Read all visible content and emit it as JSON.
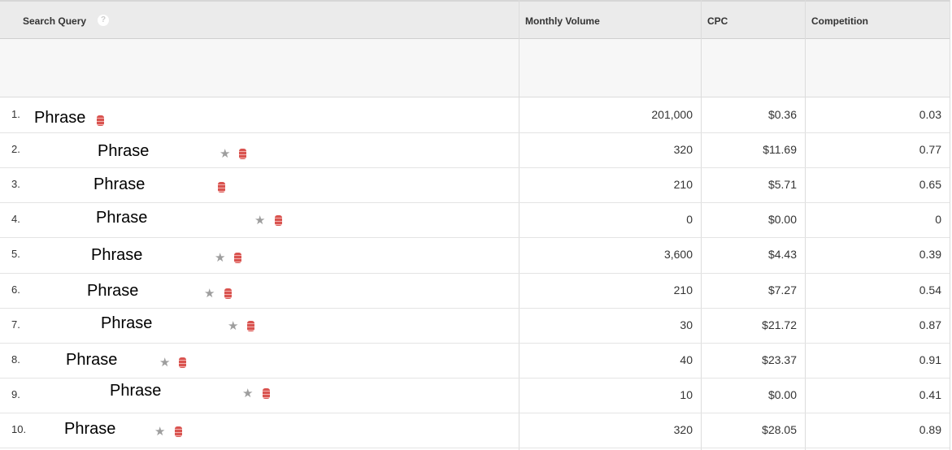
{
  "columns": [
    {
      "label": "Search Query"
    },
    {
      "label": "Monthly Volume"
    },
    {
      "label": "CPC"
    },
    {
      "label": "Competition"
    }
  ],
  "help_icon": "?",
  "colors": {
    "header_bg": "#ebebeb",
    "database_icon": "#d9534f",
    "star_icon": "#9e9e9e"
  },
  "rows": [
    {
      "index": "1.",
      "query": "Phrase",
      "starred": false,
      "volume": "201,000",
      "cpc": "$0.36",
      "competition": "0.03"
    },
    {
      "index": "2.",
      "query": "Phrase",
      "starred": true,
      "volume": "320",
      "cpc": "$11.69",
      "competition": "0.77"
    },
    {
      "index": "3.",
      "query": "Phrase",
      "starred": false,
      "volume": "210",
      "cpc": "$5.71",
      "competition": "0.65"
    },
    {
      "index": "4.",
      "query": "Phrase",
      "starred": true,
      "volume": "0",
      "cpc": "$0.00",
      "competition": "0"
    },
    {
      "index": "5.",
      "query": "Phrase",
      "starred": true,
      "volume": "3,600",
      "cpc": "$4.43",
      "competition": "0.39"
    },
    {
      "index": "6.",
      "query": "Phrase",
      "starred": true,
      "volume": "210",
      "cpc": "$7.27",
      "competition": "0.54"
    },
    {
      "index": "7.",
      "query": "Phrase",
      "starred": true,
      "volume": "30",
      "cpc": "$21.72",
      "competition": "0.87"
    },
    {
      "index": "8.",
      "query": "Phrase",
      "starred": true,
      "volume": "40",
      "cpc": "$23.37",
      "competition": "0.91"
    },
    {
      "index": "9.",
      "query": "Phrase",
      "starred": true,
      "volume": "10",
      "cpc": "$0.00",
      "competition": "0.41"
    },
    {
      "index": "10.",
      "query": "Phrase",
      "starred": true,
      "volume": "320",
      "cpc": "$28.05",
      "competition": "0.89"
    }
  ]
}
